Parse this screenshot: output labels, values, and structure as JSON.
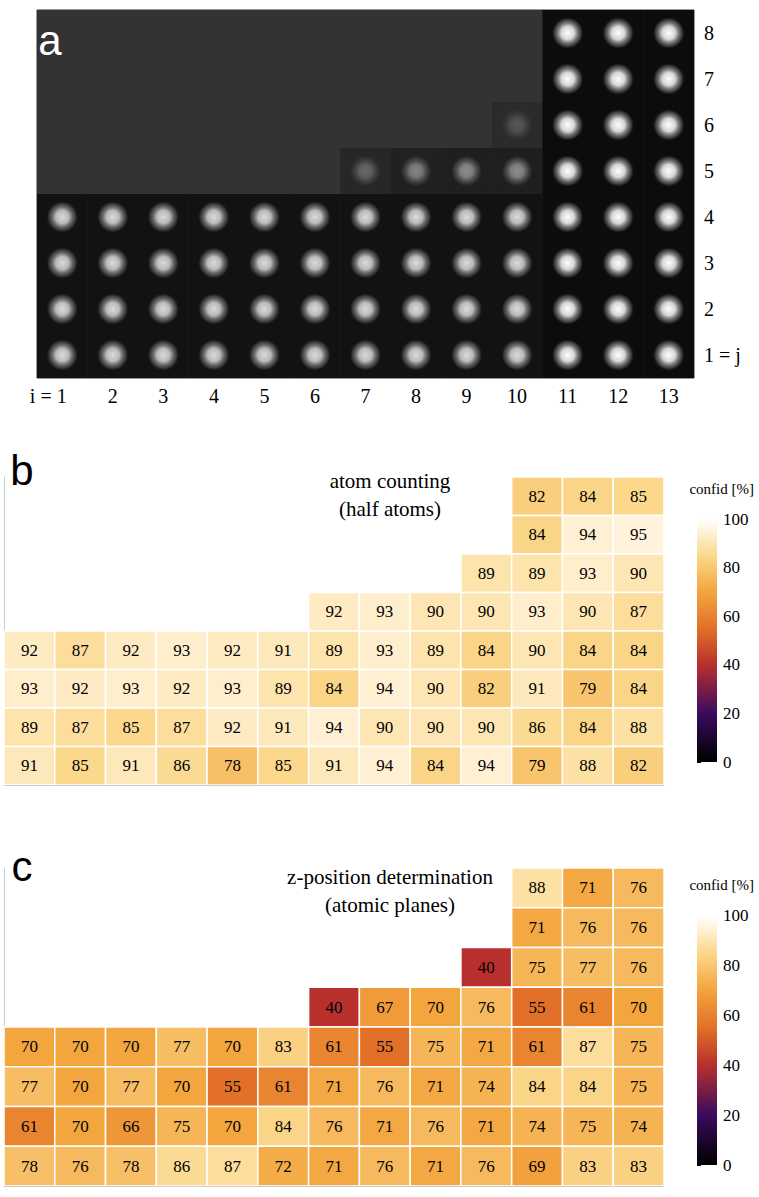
{
  "chart_data": [
    {
      "type": "scatter",
      "panel": "a",
      "xlim": [
        0.5,
        13.5
      ],
      "xticks": [
        {
          "value": 1,
          "label": "i = 1"
        },
        2,
        3,
        4,
        5,
        6,
        7,
        8,
        9,
        10,
        11,
        12,
        13
      ],
      "ylim": [
        0.5,
        8.5
      ],
      "yticks": [
        {
          "value": 1,
          "label": "1 = j"
        },
        2,
        3,
        4,
        5,
        6,
        7,
        8
      ],
      "atoms": [
        [
          1,
          1,
          0.85
        ],
        [
          2,
          1,
          0.85
        ],
        [
          3,
          1,
          0.85
        ],
        [
          4,
          1,
          0.85
        ],
        [
          5,
          1,
          0.85
        ],
        [
          6,
          1,
          0.85
        ],
        [
          7,
          1,
          0.85
        ],
        [
          8,
          1,
          0.85
        ],
        [
          9,
          1,
          0.85
        ],
        [
          10,
          1,
          0.85
        ],
        [
          1,
          2,
          0.85
        ],
        [
          2,
          2,
          0.85
        ],
        [
          3,
          2,
          0.85
        ],
        [
          4,
          2,
          0.85
        ],
        [
          5,
          2,
          0.85
        ],
        [
          6,
          2,
          0.85
        ],
        [
          7,
          2,
          0.85
        ],
        [
          8,
          2,
          0.85
        ],
        [
          9,
          2,
          0.85
        ],
        [
          10,
          2,
          0.85
        ],
        [
          1,
          3,
          0.85
        ],
        [
          2,
          3,
          0.85
        ],
        [
          3,
          3,
          0.85
        ],
        [
          4,
          3,
          0.85
        ],
        [
          5,
          3,
          0.85
        ],
        [
          6,
          3,
          0.85
        ],
        [
          7,
          3,
          0.85
        ],
        [
          8,
          3,
          0.85
        ],
        [
          9,
          3,
          0.85
        ],
        [
          10,
          3,
          0.85
        ],
        [
          1,
          4,
          0.85
        ],
        [
          2,
          4,
          0.85
        ],
        [
          3,
          4,
          0.85
        ],
        [
          4,
          4,
          0.85
        ],
        [
          5,
          4,
          0.85
        ],
        [
          6,
          4,
          0.85
        ],
        [
          7,
          4,
          0.85
        ],
        [
          8,
          4,
          0.85
        ],
        [
          9,
          4,
          0.85
        ],
        [
          10,
          4,
          0.85
        ],
        [
          11,
          1,
          1.0
        ],
        [
          12,
          1,
          1.0
        ],
        [
          13,
          1,
          1.0
        ],
        [
          11,
          2,
          1.0
        ],
        [
          12,
          2,
          1.0
        ],
        [
          13,
          2,
          1.0
        ],
        [
          11,
          3,
          1.0
        ],
        [
          12,
          3,
          1.0
        ],
        [
          13,
          3,
          1.0
        ],
        [
          11,
          4,
          1.0
        ],
        [
          12,
          4,
          1.0
        ],
        [
          13,
          4,
          1.0
        ],
        [
          11,
          5,
          1.0
        ],
        [
          12,
          5,
          1.0
        ],
        [
          13,
          5,
          1.0
        ],
        [
          11,
          6,
          1.0
        ],
        [
          12,
          6,
          1.0
        ],
        [
          13,
          6,
          1.0
        ],
        [
          11,
          7,
          1.0
        ],
        [
          12,
          7,
          1.0
        ],
        [
          13,
          7,
          1.0
        ],
        [
          11,
          8,
          1.0
        ],
        [
          12,
          8,
          1.0
        ],
        [
          13,
          8,
          1.0
        ],
        [
          7,
          5,
          0.3
        ],
        [
          8,
          5,
          0.45
        ],
        [
          9,
          5,
          0.5
        ],
        [
          10,
          5,
          0.5
        ],
        [
          10,
          6,
          0.2
        ]
      ]
    },
    {
      "type": "heatmap",
      "panel": "b",
      "title": "atom counting",
      "subtitle": "(half atoms)",
      "xlim": [
        0.5,
        13.5
      ],
      "ylim": [
        0.5,
        8.5
      ],
      "tick_labels": false,
      "data_labels": true,
      "colorbar": {
        "label": "confid [%]",
        "range": [
          0,
          100
        ],
        "ticks": [
          0,
          20,
          40,
          60,
          80,
          100
        ]
      },
      "cells": [
        [
          11,
          8,
          82
        ],
        [
          12,
          8,
          84
        ],
        [
          13,
          8,
          85
        ],
        [
          11,
          7,
          84
        ],
        [
          12,
          7,
          94
        ],
        [
          13,
          7,
          95
        ],
        [
          10,
          6,
          89
        ],
        [
          11,
          6,
          89
        ],
        [
          12,
          6,
          93
        ],
        [
          13,
          6,
          90
        ],
        [
          7,
          5,
          92
        ],
        [
          8,
          5,
          93
        ],
        [
          9,
          5,
          90
        ],
        [
          10,
          5,
          90
        ],
        [
          11,
          5,
          93
        ],
        [
          12,
          5,
          90
        ],
        [
          13,
          5,
          87
        ],
        [
          1,
          4,
          92
        ],
        [
          2,
          4,
          87
        ],
        [
          3,
          4,
          92
        ],
        [
          4,
          4,
          93
        ],
        [
          5,
          4,
          92
        ],
        [
          6,
          4,
          91
        ],
        [
          7,
          4,
          89
        ],
        [
          8,
          4,
          93
        ],
        [
          9,
          4,
          89
        ],
        [
          10,
          4,
          84
        ],
        [
          11,
          4,
          90
        ],
        [
          12,
          4,
          84
        ],
        [
          13,
          4,
          84
        ],
        [
          1,
          3,
          93
        ],
        [
          2,
          3,
          92
        ],
        [
          3,
          3,
          93
        ],
        [
          4,
          3,
          92
        ],
        [
          5,
          3,
          93
        ],
        [
          6,
          3,
          89
        ],
        [
          7,
          3,
          84
        ],
        [
          8,
          3,
          94
        ],
        [
          9,
          3,
          90
        ],
        [
          10,
          3,
          82
        ],
        [
          11,
          3,
          91
        ],
        [
          12,
          3,
          79
        ],
        [
          13,
          3,
          84
        ],
        [
          1,
          2,
          89
        ],
        [
          2,
          2,
          87
        ],
        [
          3,
          2,
          85
        ],
        [
          4,
          2,
          87
        ],
        [
          5,
          2,
          92
        ],
        [
          6,
          2,
          91
        ],
        [
          7,
          2,
          94
        ],
        [
          8,
          2,
          90
        ],
        [
          9,
          2,
          90
        ],
        [
          10,
          2,
          90
        ],
        [
          11,
          2,
          86
        ],
        [
          12,
          2,
          84
        ],
        [
          13,
          2,
          88
        ],
        [
          1,
          1,
          91
        ],
        [
          2,
          1,
          85
        ],
        [
          3,
          1,
          91
        ],
        [
          4,
          1,
          86
        ],
        [
          5,
          1,
          78
        ],
        [
          6,
          1,
          85
        ],
        [
          7,
          1,
          91
        ],
        [
          8,
          1,
          94
        ],
        [
          9,
          1,
          84
        ],
        [
          10,
          1,
          94
        ],
        [
          11,
          1,
          79
        ],
        [
          12,
          1,
          88
        ],
        [
          13,
          1,
          82
        ]
      ]
    },
    {
      "type": "heatmap",
      "panel": "c",
      "title": "z-position determination",
      "subtitle": "(atomic planes)",
      "xlim": [
        0.5,
        13.5
      ],
      "ylim": [
        0.5,
        8.5
      ],
      "tick_labels": false,
      "data_labels": true,
      "colorbar": {
        "label": "confid [%]",
        "range": [
          0,
          100
        ],
        "ticks": [
          0,
          20,
          40,
          60,
          80,
          100
        ]
      },
      "cells": [
        [
          11,
          8,
          88
        ],
        [
          12,
          8,
          71
        ],
        [
          13,
          8,
          76
        ],
        [
          11,
          7,
          71
        ],
        [
          12,
          7,
          76
        ],
        [
          13,
          7,
          76
        ],
        [
          10,
          6,
          40
        ],
        [
          11,
          6,
          75
        ],
        [
          12,
          6,
          77
        ],
        [
          13,
          6,
          76
        ],
        [
          7,
          5,
          40
        ],
        [
          8,
          5,
          67
        ],
        [
          9,
          5,
          70
        ],
        [
          10,
          5,
          76
        ],
        [
          11,
          5,
          55
        ],
        [
          12,
          5,
          61
        ],
        [
          13,
          5,
          70
        ],
        [
          1,
          4,
          70
        ],
        [
          2,
          4,
          70
        ],
        [
          3,
          4,
          70
        ],
        [
          4,
          4,
          77
        ],
        [
          5,
          4,
          70
        ],
        [
          6,
          4,
          83
        ],
        [
          7,
          4,
          61
        ],
        [
          8,
          4,
          55
        ],
        [
          9,
          4,
          75
        ],
        [
          10,
          4,
          71
        ],
        [
          11,
          4,
          61
        ],
        [
          12,
          4,
          87
        ],
        [
          13,
          4,
          75
        ],
        [
          1,
          3,
          77
        ],
        [
          2,
          3,
          70
        ],
        [
          3,
          3,
          77
        ],
        [
          4,
          3,
          70
        ],
        [
          5,
          3,
          55
        ],
        [
          6,
          3,
          61
        ],
        [
          7,
          3,
          71
        ],
        [
          8,
          3,
          76
        ],
        [
          9,
          3,
          71
        ],
        [
          10,
          3,
          74
        ],
        [
          11,
          3,
          84
        ],
        [
          12,
          3,
          84
        ],
        [
          13,
          3,
          75
        ],
        [
          1,
          2,
          61
        ],
        [
          2,
          2,
          70
        ],
        [
          3,
          2,
          66
        ],
        [
          4,
          2,
          75
        ],
        [
          5,
          2,
          70
        ],
        [
          6,
          2,
          84
        ],
        [
          7,
          2,
          76
        ],
        [
          8,
          2,
          71
        ],
        [
          9,
          2,
          76
        ],
        [
          10,
          2,
          71
        ],
        [
          11,
          2,
          74
        ],
        [
          12,
          2,
          75
        ],
        [
          13,
          2,
          74
        ],
        [
          1,
          1,
          78
        ],
        [
          2,
          1,
          76
        ],
        [
          3,
          1,
          78
        ],
        [
          4,
          1,
          86
        ],
        [
          5,
          1,
          87
        ],
        [
          6,
          1,
          72
        ],
        [
          7,
          1,
          71
        ],
        [
          8,
          1,
          76
        ],
        [
          9,
          1,
          71
        ],
        [
          10,
          1,
          76
        ],
        [
          11,
          1,
          69
        ],
        [
          12,
          1,
          83
        ],
        [
          13,
          1,
          83
        ]
      ]
    }
  ]
}
